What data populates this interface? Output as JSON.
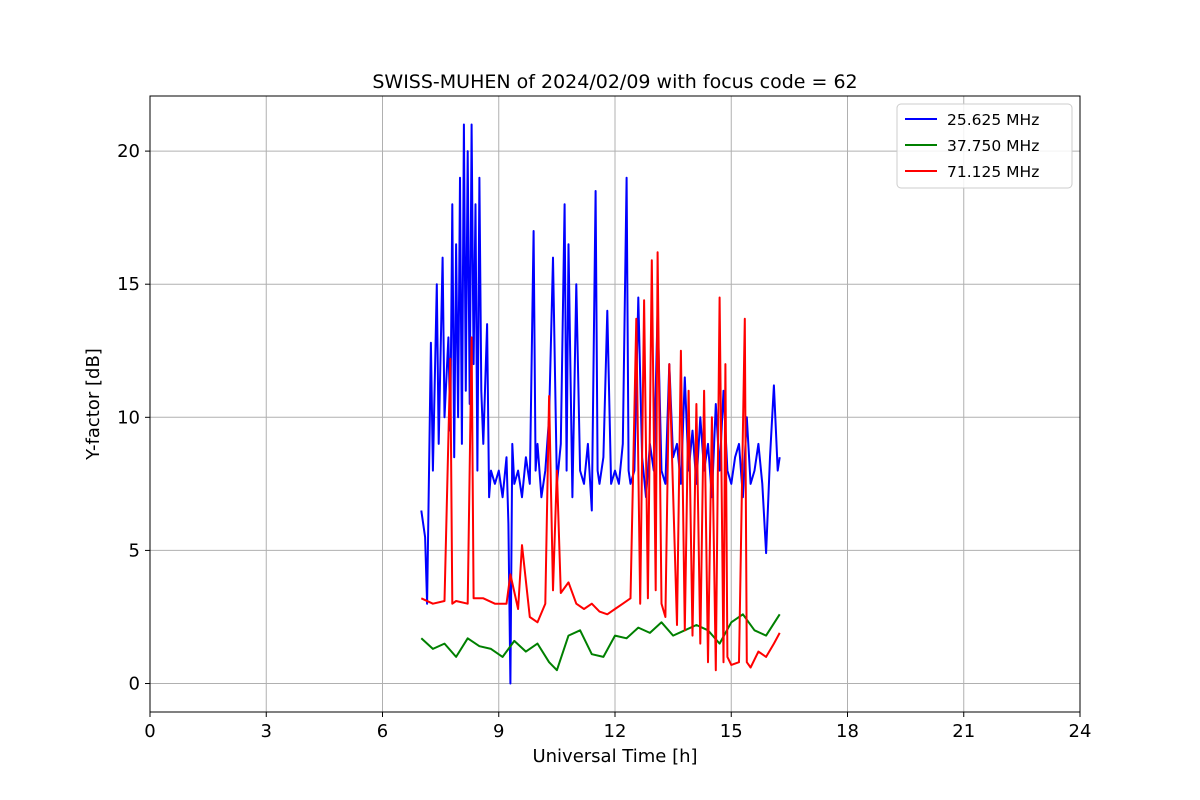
{
  "chart_data": {
    "type": "line",
    "title": "SWISS-MUHEN of 2024/02/09 with focus code = 62",
    "xlabel": "Universal Time [h]",
    "ylabel": "Y-factor [dB]",
    "xlim": [
      0,
      24
    ],
    "ylim": [
      -1.07,
      22.07
    ],
    "xticks": [
      0,
      3,
      6,
      9,
      12,
      15,
      18,
      21,
      24
    ],
    "xtick_labels": [
      "0",
      "3",
      "6",
      "9",
      "12",
      "15",
      "18",
      "21",
      "24"
    ],
    "yticks": [
      0,
      5,
      10,
      15,
      20
    ],
    "ytick_labels": [
      "0",
      "5",
      "10",
      "15",
      "20"
    ],
    "grid": true,
    "legend_position": "top-right",
    "series": [
      {
        "name": "25.625 MHz",
        "color": "#0000ff",
        "x": [
          7.0,
          7.1,
          7.15,
          7.25,
          7.3,
          7.4,
          7.45,
          7.55,
          7.6,
          7.7,
          7.75,
          7.8,
          7.85,
          7.9,
          7.95,
          8.0,
          8.05,
          8.1,
          8.15,
          8.2,
          8.25,
          8.3,
          8.35,
          8.4,
          8.45,
          8.5,
          8.55,
          8.6,
          8.7,
          8.75,
          8.8,
          8.9,
          9.0,
          9.1,
          9.2,
          9.25,
          9.3,
          9.35,
          9.4,
          9.5,
          9.6,
          9.7,
          9.8,
          9.9,
          9.95,
          10.0,
          10.1,
          10.2,
          10.3,
          10.4,
          10.5,
          10.6,
          10.7,
          10.75,
          10.8,
          10.9,
          11.0,
          11.1,
          11.2,
          11.3,
          11.4,
          11.5,
          11.55,
          11.6,
          11.7,
          11.8,
          11.9,
          12.0,
          12.1,
          12.2,
          12.3,
          12.35,
          12.4,
          12.5,
          12.6,
          12.7,
          12.8,
          12.9,
          13.0,
          13.1,
          13.2,
          13.3,
          13.4,
          13.5,
          13.6,
          13.7,
          13.8,
          13.9,
          14.0,
          14.1,
          14.2,
          14.3,
          14.4,
          14.5,
          14.6,
          14.7,
          14.8,
          14.9,
          15.0,
          15.1,
          15.2,
          15.3,
          15.4,
          15.5,
          15.6,
          15.7,
          15.8,
          15.9,
          16.0,
          16.1,
          16.2,
          16.25
        ],
        "y": [
          6.5,
          5.5,
          3.0,
          12.8,
          8.0,
          15.0,
          9.0,
          16.0,
          10.0,
          13.0,
          9.5,
          18.0,
          8.5,
          16.5,
          10.0,
          19.0,
          9.0,
          21.0,
          11.0,
          20.0,
          10.5,
          21.0,
          12.0,
          18.0,
          8.0,
          19.0,
          11.0,
          9.0,
          13.5,
          7.0,
          8.0,
          7.5,
          8.0,
          7.0,
          8.5,
          6.0,
          0.0,
          9.0,
          7.5,
          8.0,
          7.0,
          8.5,
          7.5,
          17.0,
          8.0,
          9.0,
          7.0,
          8.0,
          10.0,
          16.0,
          7.5,
          9.0,
          18.0,
          8.0,
          16.5,
          7.0,
          15.0,
          8.0,
          7.5,
          9.0,
          6.5,
          18.5,
          8.0,
          7.5,
          8.5,
          14.0,
          7.5,
          8.0,
          7.5,
          9.0,
          19.0,
          8.0,
          7.5,
          8.0,
          14.5,
          8.5,
          7.0,
          9.0,
          8.0,
          14.0,
          8.0,
          7.5,
          12.0,
          8.5,
          9.0,
          7.5,
          11.5,
          8.0,
          9.5,
          7.5,
          10.0,
          8.0,
          9.0,
          7.0,
          10.5,
          8.0,
          11.0,
          8.0,
          7.5,
          8.5,
          9.0,
          7.0,
          10.0,
          7.5,
          8.0,
          9.0,
          7.5,
          4.9,
          8.5,
          11.2,
          8.0,
          8.5
        ]
      },
      {
        "name": "37.750 MHz",
        "color": "#008000",
        "x": [
          7.0,
          7.3,
          7.6,
          7.9,
          8.2,
          8.5,
          8.8,
          9.1,
          9.4,
          9.7,
          10.0,
          10.3,
          10.5,
          10.8,
          11.1,
          11.4,
          11.7,
          12.0,
          12.3,
          12.6,
          12.9,
          13.2,
          13.5,
          13.8,
          14.1,
          14.4,
          14.7,
          15.0,
          15.3,
          15.6,
          15.9,
          16.25
        ],
        "y": [
          1.7,
          1.3,
          1.5,
          1.0,
          1.7,
          1.4,
          1.3,
          1.0,
          1.6,
          1.2,
          1.5,
          0.8,
          0.5,
          1.8,
          2.0,
          1.1,
          1.0,
          1.8,
          1.7,
          2.1,
          1.9,
          2.3,
          1.8,
          2.0,
          2.2,
          2.0,
          1.5,
          2.3,
          2.6,
          2.0,
          1.8,
          2.6
        ]
      },
      {
        "name": "71.125 MHz",
        "color": "#ff0000",
        "x": [
          7.0,
          7.3,
          7.6,
          7.75,
          7.8,
          7.9,
          8.2,
          8.3,
          8.35,
          8.6,
          8.9,
          9.2,
          9.3,
          9.5,
          9.6,
          9.8,
          10.0,
          10.2,
          10.3,
          10.4,
          10.5,
          10.6,
          10.8,
          11.0,
          11.2,
          11.4,
          11.6,
          11.8,
          12.0,
          12.2,
          12.4,
          12.55,
          12.65,
          12.75,
          12.85,
          12.95,
          13.05,
          13.1,
          13.2,
          13.3,
          13.4,
          13.6,
          13.7,
          13.8,
          13.9,
          14.0,
          14.1,
          14.2,
          14.3,
          14.4,
          14.5,
          14.6,
          14.7,
          14.8,
          14.85,
          14.9,
          15.0,
          15.2,
          15.35,
          15.4,
          15.5,
          15.7,
          15.9,
          16.1,
          16.25
        ],
        "y": [
          3.2,
          3.0,
          3.1,
          12.2,
          3.0,
          3.1,
          3.0,
          13.0,
          3.2,
          3.2,
          3.0,
          3.0,
          4.1,
          2.8,
          5.2,
          2.5,
          2.3,
          3.0,
          10.8,
          3.5,
          8.0,
          3.4,
          3.8,
          3.0,
          2.8,
          3.0,
          2.7,
          2.6,
          2.8,
          3.0,
          3.2,
          13.7,
          3.0,
          14.4,
          3.2,
          15.9,
          3.5,
          16.2,
          3.0,
          2.5,
          12.0,
          2.2,
          12.5,
          2.0,
          11.0,
          1.8,
          10.5,
          1.5,
          11.0,
          0.8,
          10.0,
          0.5,
          14.5,
          0.8,
          12.0,
          1.0,
          0.7,
          0.8,
          13.7,
          0.8,
          0.6,
          1.2,
          1.0,
          1.5,
          1.9
        ]
      }
    ]
  }
}
